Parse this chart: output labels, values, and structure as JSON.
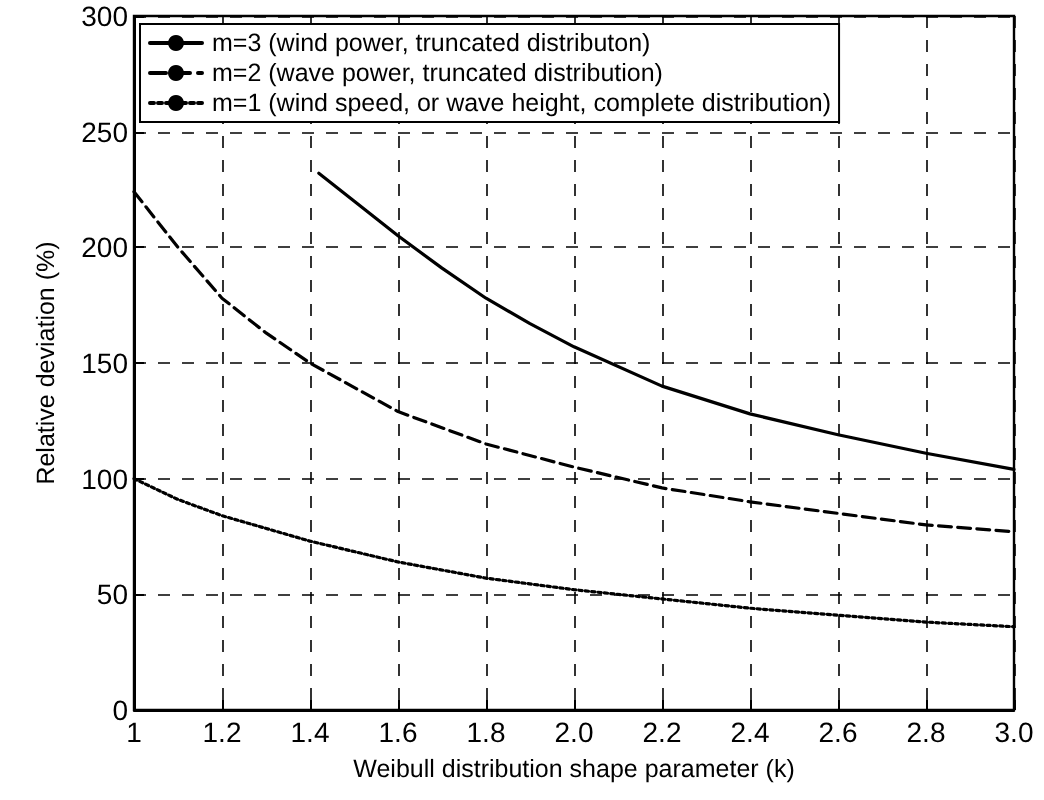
{
  "chart_data": {
    "type": "line",
    "xlabel": "Weibull distribution shape parameter (k)",
    "ylabel": "Relative deviation (%)",
    "xlim": [
      1,
      3.0
    ],
    "xticks": [
      1,
      1.2,
      1.4,
      1.6,
      1.8,
      {
        "value": 2,
        "label": "2.0"
      },
      2.2,
      2.4,
      2.6,
      2.8,
      {
        "value": 3,
        "label": "3.0"
      }
    ],
    "ylim": [
      0,
      300
    ],
    "yticks": [
      0,
      50,
      100,
      150,
      200,
      250,
      300
    ],
    "grid": true,
    "legend": "top left",
    "marker": "none",
    "series": [
      {
        "name": "m=3 (wind power, truncated distributon)",
        "color": "#000000",
        "line_style": "solid",
        "x": [
          1.42,
          1.5,
          1.6,
          1.7,
          1.8,
          1.9,
          2.0,
          2.2,
          2.4,
          2.6,
          2.8,
          3.0
        ],
        "values": [
          232,
          220,
          205,
          191,
          178,
          167,
          157,
          140,
          128,
          119,
          111,
          104
        ]
      },
      {
        "name": "m=2 (wave power, truncated distribution)",
        "color": "#000000",
        "line_style": "dashed",
        "x": [
          1,
          1.1,
          1.2,
          1.3,
          1.4,
          1.6,
          1.8,
          2.0,
          2.2,
          2.4,
          2.6,
          2.8,
          3.0
        ],
        "values": [
          224,
          200,
          178,
          163,
          150,
          129,
          115,
          105,
          96,
          90,
          85,
          80,
          77
        ]
      },
      {
        "name": "m=1 (wind speed, or wave height, complete distribution)",
        "color": "#000000",
        "line_style": "dotted",
        "x": [
          1,
          1.1,
          1.2,
          1.4,
          1.6,
          1.8,
          2.0,
          2.2,
          2.4,
          2.6,
          2.8,
          3.0
        ],
        "values": [
          100,
          91,
          84,
          73,
          64,
          57,
          52,
          48,
          44,
          41,
          38,
          36
        ]
      }
    ]
  }
}
